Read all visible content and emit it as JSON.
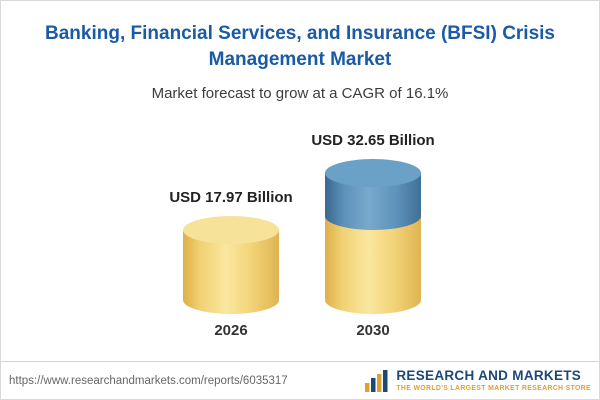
{
  "header": {
    "title": "Banking, Financial Services, and Insurance (BFSI) Crisis Management Market",
    "subtitle": "Market forecast to grow at a CAGR of 16.1%"
  },
  "chart_data": {
    "type": "bar",
    "categories": [
      "2026",
      "2030"
    ],
    "values": [
      17.97,
      32.65
    ],
    "value_labels": [
      "USD 17.97 Billion",
      "USD 32.65 Billion"
    ],
    "title": "Banking, Financial Services, and Insurance (BFSI) Crisis Management Market",
    "subtitle": "Market forecast to grow at a CAGR of 16.1%",
    "unit": "USD Billion",
    "cagr": "16.1%",
    "xlabel": "",
    "ylabel": "",
    "legend": "off",
    "grid": "off",
    "colors": {
      "bar_2026": "#f2d377",
      "bar_2030_bottom": "#f2d377",
      "bar_2030_top": "#5e92ba",
      "title_blue": "#1b5aa5",
      "logo_navy": "#1c4876",
      "logo_gold": "#dfa035"
    }
  },
  "footer": {
    "url": "https://www.researchandmarkets.com/reports/6035317",
    "logo": {
      "name": "RESEARCH AND MARKETS",
      "tagline": "THE WORLD'S LARGEST MARKET RESEARCH STORE"
    }
  }
}
